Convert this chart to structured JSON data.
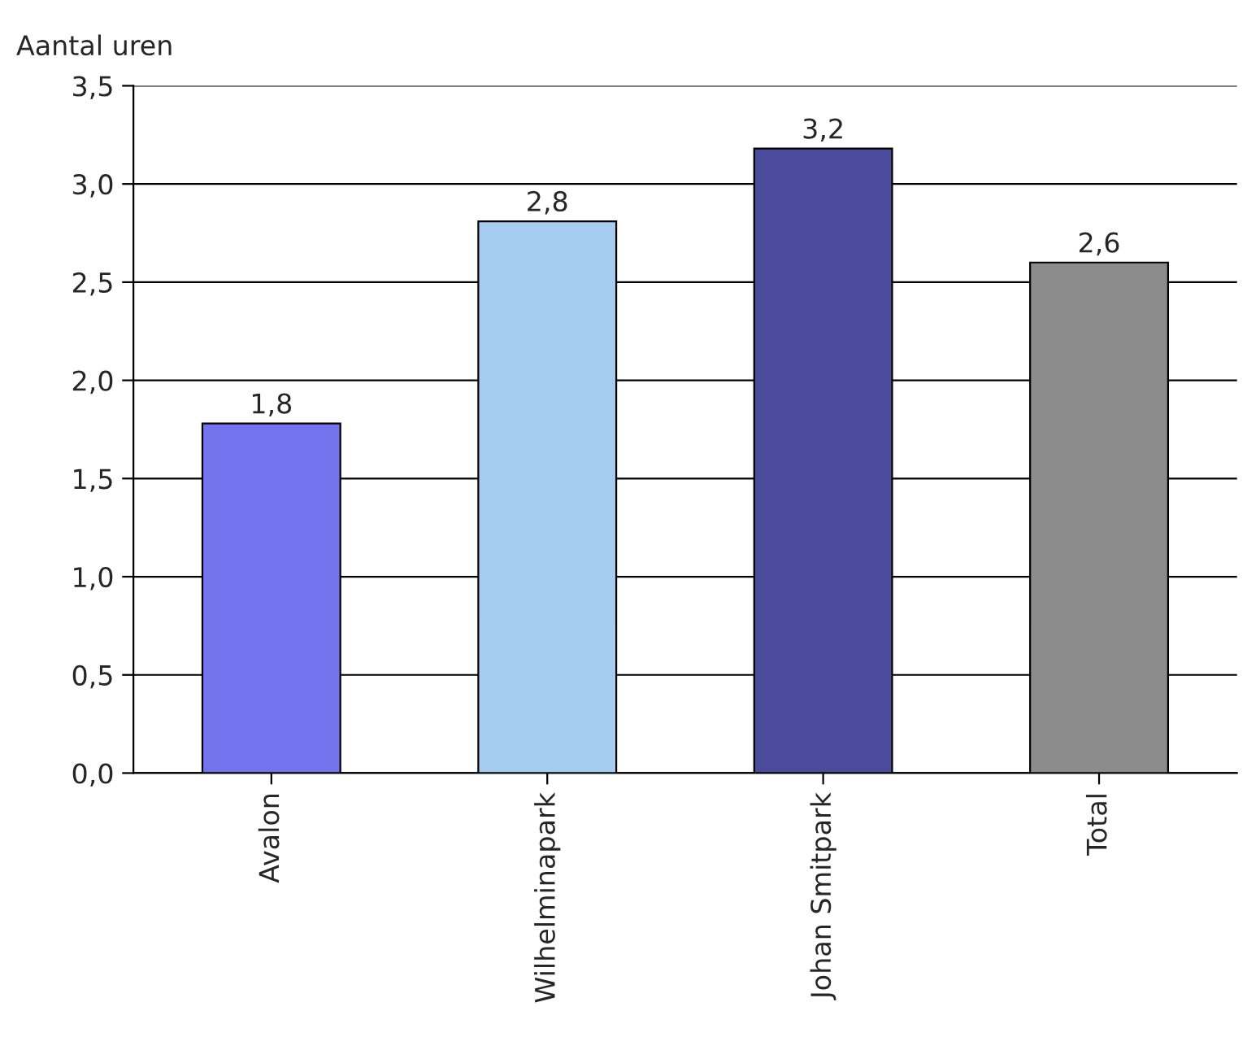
{
  "chart_data": {
    "type": "bar",
    "ylabel": "Aantal uren",
    "categories": [
      "Avalon",
      "Wilhelminapark",
      "Johan Smitpark",
      "Total"
    ],
    "values": [
      1.78,
      2.81,
      3.18,
      2.6
    ],
    "value_labels": [
      "1,8",
      "2,8",
      "3,2",
      "2,6"
    ],
    "colors": [
      "#7373ee",
      "#a6cdf0",
      "#4b4b9c",
      "#8c8c8c"
    ],
    "ylim": [
      0,
      3.5
    ],
    "yticks": [
      {
        "value": 0,
        "label": "0,0"
      },
      {
        "value": 0.5,
        "label": "0,5"
      },
      {
        "value": 1,
        "label": "1,0"
      },
      {
        "value": 1.5,
        "label": "1,5"
      },
      {
        "value": 2,
        "label": "2,0"
      },
      {
        "value": 2.5,
        "label": "2,5"
      },
      {
        "value": 3,
        "label": "3,0"
      },
      {
        "value": 3.5,
        "label": "3,5"
      }
    ],
    "grid": "y",
    "legend": false
  }
}
